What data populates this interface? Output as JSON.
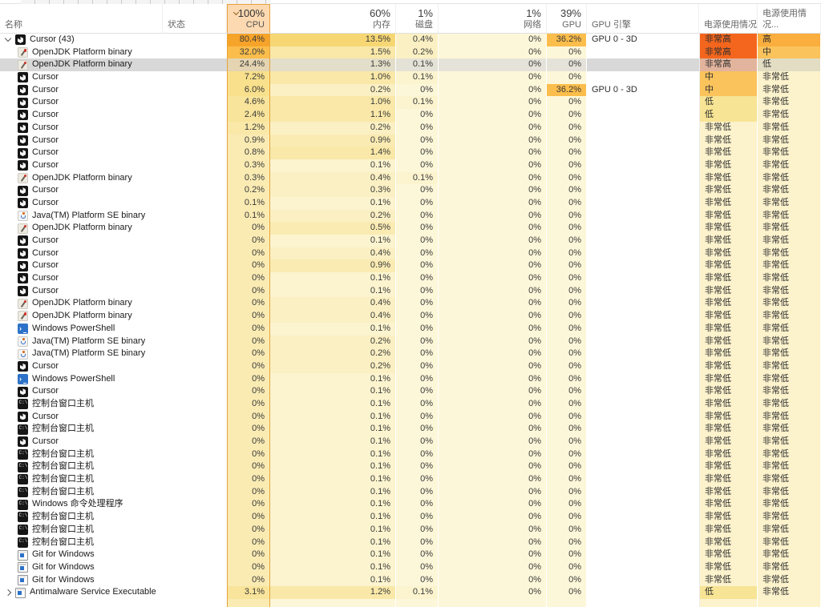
{
  "header": {
    "columns": [
      {
        "id": "name",
        "label": "名称",
        "type": "text"
      },
      {
        "id": "status",
        "label": "状态",
        "type": "text"
      },
      {
        "id": "cpu",
        "total": "100%",
        "label": "CPU",
        "type": "num",
        "sorted": true
      },
      {
        "id": "memory",
        "total": "60%",
        "label": "内存",
        "type": "num"
      },
      {
        "id": "disk",
        "total": "1%",
        "label": "磁盘",
        "type": "num"
      },
      {
        "id": "network",
        "total": "1%",
        "label": "网络",
        "type": "num"
      },
      {
        "id": "gpu",
        "total": "39%",
        "label": "GPU",
        "type": "num"
      },
      {
        "id": "gpu_engine",
        "label": "GPU 引擎",
        "type": "text"
      },
      {
        "id": "power",
        "label": "电源使用情况",
        "type": "text"
      },
      {
        "id": "power_trend",
        "label": "电源使用情况...",
        "type": "text"
      }
    ]
  },
  "colors": {
    "sorted_border": "#E9A23B",
    "sorted_header_bg": "#FCD9B1",
    "selection": "#D9D9D9",
    "heat_scale": [
      {
        "min": 50,
        "color": "#F6A329"
      },
      {
        "min": 28,
        "color": "#FBBD4B"
      },
      {
        "min": 18,
        "color": "#FAC85D"
      },
      {
        "min": 10,
        "color": "#F6D774"
      },
      {
        "min": 5,
        "color": "#F8E08C"
      },
      {
        "min": 2,
        "color": "#F8E49A"
      },
      {
        "min": 1,
        "color": "#F9E8A8"
      },
      {
        "min": 0.5,
        "color": "#FAEBB3"
      },
      {
        "min": 0.2,
        "color": "#FBF0C3"
      },
      {
        "min": 0.001,
        "color": "#FCF4CF"
      },
      {
        "min": -1,
        "color": "#FDF7D9"
      }
    ],
    "power_levels": {
      "非常低": "#FCF2CC",
      "低": "#F7E494",
      "中": "#FAC35C",
      "高": "#FAAE3D",
      "非常高": "#F4661D"
    }
  },
  "rows": [
    {
      "name": "Cursor (43)",
      "icon": "cursor",
      "group": "expanded",
      "cpu": "80.4%",
      "memory": "13.5%",
      "disk": "0.4%",
      "network": "0%",
      "gpu": "36.2%",
      "gpu_engine": "GPU 0 - 3D",
      "power": "非常高",
      "power_trend": "高"
    },
    {
      "name": "OpenJDK Platform binary",
      "icon": "openjdk",
      "cpu": "32.0%",
      "memory": "1.5%",
      "disk": "0.2%",
      "network": "0%",
      "gpu": "0%",
      "gpu_engine": "",
      "power": "非常高",
      "power_trend": "中"
    },
    {
      "name": "OpenJDK Platform binary",
      "icon": "openjdk",
      "selected": true,
      "cpu": "24.4%",
      "memory": "1.3%",
      "disk": "0.1%",
      "network": "0%",
      "gpu": "0%",
      "gpu_engine": "",
      "power": "非常高",
      "power_trend": "低"
    },
    {
      "name": "Cursor",
      "icon": "cursor",
      "cpu": "7.2%",
      "memory": "1.0%",
      "disk": "0.1%",
      "network": "0%",
      "gpu": "0%",
      "gpu_engine": "",
      "power": "中",
      "power_trend": "非常低"
    },
    {
      "name": "Cursor",
      "icon": "cursor",
      "cpu": "6.0%",
      "memory": "0.2%",
      "disk": "0%",
      "network": "0%",
      "gpu": "36.2%",
      "gpu_engine": "GPU 0 - 3D",
      "power": "中",
      "power_trend": "非常低"
    },
    {
      "name": "Cursor",
      "icon": "cursor",
      "cpu": "4.6%",
      "memory": "1.0%",
      "disk": "0.1%",
      "network": "0%",
      "gpu": "0%",
      "gpu_engine": "",
      "power": "低",
      "power_trend": "非常低"
    },
    {
      "name": "Cursor",
      "icon": "cursor",
      "cpu": "2.4%",
      "memory": "1.1%",
      "disk": "0%",
      "network": "0%",
      "gpu": "0%",
      "gpu_engine": "",
      "power": "低",
      "power_trend": "非常低"
    },
    {
      "name": "Cursor",
      "icon": "cursor",
      "cpu": "1.2%",
      "memory": "0.2%",
      "disk": "0%",
      "network": "0%",
      "gpu": "0%",
      "gpu_engine": "",
      "power": "非常低",
      "power_trend": "非常低"
    },
    {
      "name": "Cursor",
      "icon": "cursor",
      "cpu": "0.9%",
      "memory": "0.9%",
      "disk": "0%",
      "network": "0%",
      "gpu": "0%",
      "gpu_engine": "",
      "power": "非常低",
      "power_trend": "非常低"
    },
    {
      "name": "Cursor",
      "icon": "cursor",
      "cpu": "0.8%",
      "memory": "1.4%",
      "disk": "0%",
      "network": "0%",
      "gpu": "0%",
      "gpu_engine": "",
      "power": "非常低",
      "power_trend": "非常低"
    },
    {
      "name": "Cursor",
      "icon": "cursor",
      "cpu": "0.3%",
      "memory": "0.1%",
      "disk": "0%",
      "network": "0%",
      "gpu": "0%",
      "gpu_engine": "",
      "power": "非常低",
      "power_trend": "非常低"
    },
    {
      "name": "OpenJDK Platform binary",
      "icon": "openjdk",
      "cpu": "0.3%",
      "memory": "0.4%",
      "disk": "0.1%",
      "network": "0%",
      "gpu": "0%",
      "gpu_engine": "",
      "power": "非常低",
      "power_trend": "非常低"
    },
    {
      "name": "Cursor",
      "icon": "cursor",
      "cpu": "0.2%",
      "memory": "0.3%",
      "disk": "0%",
      "network": "0%",
      "gpu": "0%",
      "gpu_engine": "",
      "power": "非常低",
      "power_trend": "非常低"
    },
    {
      "name": "Cursor",
      "icon": "cursor",
      "cpu": "0.1%",
      "memory": "0.1%",
      "disk": "0%",
      "network": "0%",
      "gpu": "0%",
      "gpu_engine": "",
      "power": "非常低",
      "power_trend": "非常低"
    },
    {
      "name": "Java(TM) Platform SE binary",
      "icon": "java",
      "cpu": "0.1%",
      "memory": "0.2%",
      "disk": "0%",
      "network": "0%",
      "gpu": "0%",
      "gpu_engine": "",
      "power": "非常低",
      "power_trend": "非常低"
    },
    {
      "name": "OpenJDK Platform binary",
      "icon": "openjdk",
      "cpu": "0%",
      "memory": "0.5%",
      "disk": "0%",
      "network": "0%",
      "gpu": "0%",
      "gpu_engine": "",
      "power": "非常低",
      "power_trend": "非常低"
    },
    {
      "name": "Cursor",
      "icon": "cursor",
      "cpu": "0%",
      "memory": "0.1%",
      "disk": "0%",
      "network": "0%",
      "gpu": "0%",
      "gpu_engine": "",
      "power": "非常低",
      "power_trend": "非常低"
    },
    {
      "name": "Cursor",
      "icon": "cursor",
      "cpu": "0%",
      "memory": "0.4%",
      "disk": "0%",
      "network": "0%",
      "gpu": "0%",
      "gpu_engine": "",
      "power": "非常低",
      "power_trend": "非常低"
    },
    {
      "name": "Cursor",
      "icon": "cursor",
      "cpu": "0%",
      "memory": "0.9%",
      "disk": "0%",
      "network": "0%",
      "gpu": "0%",
      "gpu_engine": "",
      "power": "非常低",
      "power_trend": "非常低"
    },
    {
      "name": "Cursor",
      "icon": "cursor",
      "cpu": "0%",
      "memory": "0.1%",
      "disk": "0%",
      "network": "0%",
      "gpu": "0%",
      "gpu_engine": "",
      "power": "非常低",
      "power_trend": "非常低"
    },
    {
      "name": "Cursor",
      "icon": "cursor",
      "cpu": "0%",
      "memory": "0.1%",
      "disk": "0%",
      "network": "0%",
      "gpu": "0%",
      "gpu_engine": "",
      "power": "非常低",
      "power_trend": "非常低"
    },
    {
      "name": "OpenJDK Platform binary",
      "icon": "openjdk",
      "cpu": "0%",
      "memory": "0.4%",
      "disk": "0%",
      "network": "0%",
      "gpu": "0%",
      "gpu_engine": "",
      "power": "非常低",
      "power_trend": "非常低"
    },
    {
      "name": "OpenJDK Platform binary",
      "icon": "openjdk",
      "cpu": "0%",
      "memory": "0.4%",
      "disk": "0%",
      "network": "0%",
      "gpu": "0%",
      "gpu_engine": "",
      "power": "非常低",
      "power_trend": "非常低"
    },
    {
      "name": "Windows PowerShell",
      "icon": "ps",
      "cpu": "0%",
      "memory": "0.1%",
      "disk": "0%",
      "network": "0%",
      "gpu": "0%",
      "gpu_engine": "",
      "power": "非常低",
      "power_trend": "非常低"
    },
    {
      "name": "Java(TM) Platform SE binary",
      "icon": "java",
      "cpu": "0%",
      "memory": "0.2%",
      "disk": "0%",
      "network": "0%",
      "gpu": "0%",
      "gpu_engine": "",
      "power": "非常低",
      "power_trend": "非常低"
    },
    {
      "name": "Java(TM) Platform SE binary",
      "icon": "java",
      "cpu": "0%",
      "memory": "0.2%",
      "disk": "0%",
      "network": "0%",
      "gpu": "0%",
      "gpu_engine": "",
      "power": "非常低",
      "power_trend": "非常低"
    },
    {
      "name": "Cursor",
      "icon": "cursor",
      "cpu": "0%",
      "memory": "0.2%",
      "disk": "0%",
      "network": "0%",
      "gpu": "0%",
      "gpu_engine": "",
      "power": "非常低",
      "power_trend": "非常低"
    },
    {
      "name": "Windows PowerShell",
      "icon": "ps",
      "cpu": "0%",
      "memory": "0.1%",
      "disk": "0%",
      "network": "0%",
      "gpu": "0%",
      "gpu_engine": "",
      "power": "非常低",
      "power_trend": "非常低"
    },
    {
      "name": "Cursor",
      "icon": "cursor",
      "cpu": "0%",
      "memory": "0.1%",
      "disk": "0%",
      "network": "0%",
      "gpu": "0%",
      "gpu_engine": "",
      "power": "非常低",
      "power_trend": "非常低"
    },
    {
      "name": "控制台窗口主机",
      "icon": "console",
      "cpu": "0%",
      "memory": "0.1%",
      "disk": "0%",
      "network": "0%",
      "gpu": "0%",
      "gpu_engine": "",
      "power": "非常低",
      "power_trend": "非常低"
    },
    {
      "name": "Cursor",
      "icon": "cursor",
      "cpu": "0%",
      "memory": "0.1%",
      "disk": "0%",
      "network": "0%",
      "gpu": "0%",
      "gpu_engine": "",
      "power": "非常低",
      "power_trend": "非常低"
    },
    {
      "name": "控制台窗口主机",
      "icon": "console",
      "cpu": "0%",
      "memory": "0.1%",
      "disk": "0%",
      "network": "0%",
      "gpu": "0%",
      "gpu_engine": "",
      "power": "非常低",
      "power_trend": "非常低"
    },
    {
      "name": "Cursor",
      "icon": "cursor",
      "cpu": "0%",
      "memory": "0.1%",
      "disk": "0%",
      "network": "0%",
      "gpu": "0%",
      "gpu_engine": "",
      "power": "非常低",
      "power_trend": "非常低"
    },
    {
      "name": "控制台窗口主机",
      "icon": "console",
      "cpu": "0%",
      "memory": "0.1%",
      "disk": "0%",
      "network": "0%",
      "gpu": "0%",
      "gpu_engine": "",
      "power": "非常低",
      "power_trend": "非常低"
    },
    {
      "name": "控制台窗口主机",
      "icon": "console",
      "cpu": "0%",
      "memory": "0.1%",
      "disk": "0%",
      "network": "0%",
      "gpu": "0%",
      "gpu_engine": "",
      "power": "非常低",
      "power_trend": "非常低"
    },
    {
      "name": "控制台窗口主机",
      "icon": "console",
      "cpu": "0%",
      "memory": "0.1%",
      "disk": "0%",
      "network": "0%",
      "gpu": "0%",
      "gpu_engine": "",
      "power": "非常低",
      "power_trend": "非常低"
    },
    {
      "name": "控制台窗口主机",
      "icon": "console",
      "cpu": "0%",
      "memory": "0.1%",
      "disk": "0%",
      "network": "0%",
      "gpu": "0%",
      "gpu_engine": "",
      "power": "非常低",
      "power_trend": "非常低"
    },
    {
      "name": "Windows 命令处理程序",
      "icon": "console",
      "cpu": "0%",
      "memory": "0.1%",
      "disk": "0%",
      "network": "0%",
      "gpu": "0%",
      "gpu_engine": "",
      "power": "非常低",
      "power_trend": "非常低"
    },
    {
      "name": "控制台窗口主机",
      "icon": "console",
      "cpu": "0%",
      "memory": "0.1%",
      "disk": "0%",
      "network": "0%",
      "gpu": "0%",
      "gpu_engine": "",
      "power": "非常低",
      "power_trend": "非常低"
    },
    {
      "name": "控制台窗口主机",
      "icon": "console",
      "cpu": "0%",
      "memory": "0.1%",
      "disk": "0%",
      "network": "0%",
      "gpu": "0%",
      "gpu_engine": "",
      "power": "非常低",
      "power_trend": "非常低"
    },
    {
      "name": "控制台窗口主机",
      "icon": "console",
      "cpu": "0%",
      "memory": "0.1%",
      "disk": "0%",
      "network": "0%",
      "gpu": "0%",
      "gpu_engine": "",
      "power": "非常低",
      "power_trend": "非常低"
    },
    {
      "name": "Git for Windows",
      "icon": "window",
      "cpu": "0%",
      "memory": "0.1%",
      "disk": "0%",
      "network": "0%",
      "gpu": "0%",
      "gpu_engine": "",
      "power": "非常低",
      "power_trend": "非常低"
    },
    {
      "name": "Git for Windows",
      "icon": "window",
      "cpu": "0%",
      "memory": "0.1%",
      "disk": "0%",
      "network": "0%",
      "gpu": "0%",
      "gpu_engine": "",
      "power": "非常低",
      "power_trend": "非常低"
    },
    {
      "name": "Git for Windows",
      "icon": "window",
      "cpu": "0%",
      "memory": "0.1%",
      "disk": "0%",
      "network": "0%",
      "gpu": "0%",
      "gpu_engine": "",
      "power": "非常低",
      "power_trend": "非常低"
    },
    {
      "name": "Antimalware Service Executable",
      "icon": "window",
      "group": "collapsed",
      "cpu": "3.1%",
      "memory": "1.2%",
      "disk": "0.1%",
      "network": "0%",
      "gpu": "0%",
      "gpu_engine": "",
      "power": "低",
      "power_trend": "非常低"
    }
  ]
}
